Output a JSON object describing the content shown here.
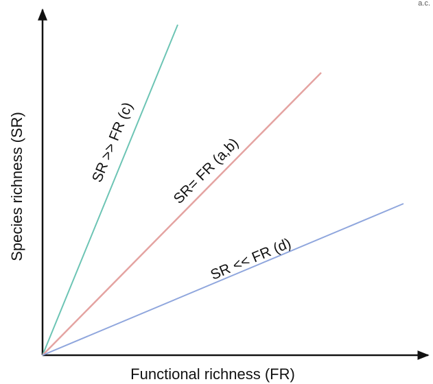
{
  "axes": {
    "x_label": "Functional richness (FR)",
    "y_label": "Species richness (SR)",
    "color": "#111111"
  },
  "lines": [
    {
      "key": "c",
      "label": "SR >> FR (c)",
      "color": "#6cc4b4"
    },
    {
      "key": "ab",
      "label": "SR= FR (a,b)",
      "color": "#e4a3a1"
    },
    {
      "key": "d",
      "label": "SR << FR (d)",
      "color": "#8fa6dd"
    }
  ],
  "corner_mark": "a.c."
}
